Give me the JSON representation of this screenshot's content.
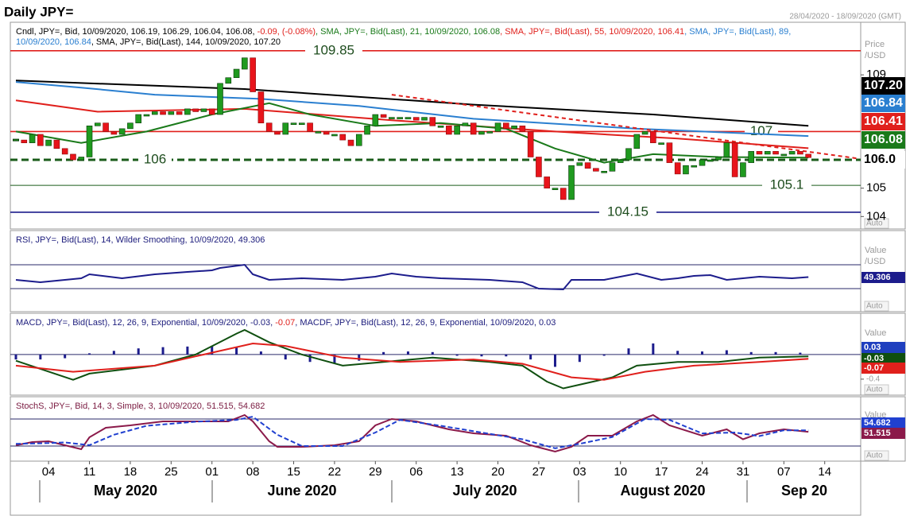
{
  "title": "Daily JPY=",
  "date_range": "28/04/2020 - 18/09/2020 (GMT)",
  "x_axis": {
    "day_labels": [
      "04",
      "11",
      "18",
      "25",
      "01",
      "08",
      "15",
      "22",
      "29",
      "06",
      "13",
      "20",
      "27",
      "03",
      "10",
      "17",
      "24",
      "31",
      "07",
      "14"
    ],
    "month_labels": [
      "May 2020",
      "June 2020",
      "July 2020",
      "August 2020",
      "Sep 20"
    ]
  },
  "chart_data": [
    {
      "type": "candlestick",
      "header": [
        [
          {
            "text": "Cndl, JPY=, Bid, 10/09/2020, 106.19, 106.29, 106.04, 106.08, ",
            "color": "#000000"
          },
          {
            "text": "-0.09, (-0.08%)",
            "color": "#e0201c"
          },
          {
            "text": ", SMA, JPY=, Bid(Last), 21, 10/09/2020, 106.08",
            "color": "#1a7a1a"
          },
          {
            "text": ", SMA, JPY=, Bid(Last), 55, 10/09/2020, 106.41",
            "color": "#e0201c"
          },
          {
            "text": ", SMA, JPY=, Bid(Last), 89,",
            "color": "#2a7fd0"
          }
        ],
        [
          {
            "text": "10/09/2020, 106.84",
            "color": "#2a7fd0"
          },
          {
            "text": ", SMA, JPY=, Bid(Last), 144, 10/09/2020, 107.20",
            "color": "#000000"
          }
        ]
      ],
      "up_color": "#1f9a1f",
      "down_color": "#e8141b",
      "closes": [
        106.7,
        106.6,
        106.9,
        106.5,
        106.7,
        106.4,
        106.2,
        106.0,
        106.1,
        107.2,
        107.3,
        107.0,
        106.9,
        107.1,
        107.3,
        107.6,
        107.6,
        107.7,
        107.6,
        107.7,
        107.6,
        107.8,
        107.7,
        107.8,
        107.6,
        108.7,
        108.9,
        109.2,
        109.6,
        108.4,
        107.3,
        107.0,
        106.9,
        107.3,
        107.3,
        107.3,
        107.0,
        107.0,
        106.9,
        106.9,
        106.7,
        106.5,
        106.9,
        107.2,
        107.6,
        107.5,
        107.5,
        107.5,
        107.5,
        107.4,
        107.5,
        107.2,
        107.2,
        106.9,
        107.2,
        107.3,
        106.9,
        107.0,
        107.0,
        107.3,
        107.1,
        107.2,
        107.0,
        106.1,
        105.4,
        105.0,
        105.0,
        104.6,
        105.8,
        105.9,
        105.7,
        105.6,
        105.6,
        105.9,
        106.0,
        106.4,
        106.9,
        107.0,
        106.6,
        106.6,
        105.9,
        105.5,
        105.8,
        105.8,
        106.0,
        106.0,
        106.1,
        106.6,
        105.4,
        105.9,
        106.3,
        106.2,
        106.3,
        106.2,
        106.2,
        106.3,
        106.2,
        106.08
      ],
      "series": [
        {
          "color": "#000000",
          "x": [
            0,
            28,
            56,
            78,
            97
          ],
          "values": [
            108.8,
            108.5,
            107.95,
            107.6,
            107.2
          ]
        },
        {
          "color": "#2a7fd0",
          "x": [
            0,
            8,
            17,
            30,
            42,
            56,
            76,
            97
          ],
          "values": [
            108.75,
            108.55,
            108.3,
            108.15,
            107.9,
            107.45,
            107.1,
            106.84
          ]
        },
        {
          "color": "#e0201c",
          "x": [
            0,
            10,
            28,
            46,
            66,
            81,
            97
          ],
          "values": [
            108.1,
            107.7,
            107.8,
            107.4,
            107.0,
            106.75,
            106.41
          ]
        },
        {
          "color": "#1a7a1a",
          "x": [
            0,
            8,
            16,
            24,
            31,
            36,
            44,
            52,
            60,
            66,
            72,
            78,
            86,
            97
          ],
          "values": [
            107.0,
            106.6,
            107.0,
            107.6,
            108.0,
            107.6,
            107.2,
            107.3,
            107.1,
            106.4,
            105.9,
            106.2,
            106.1,
            106.08
          ]
        }
      ],
      "trendline": {
        "color": "#e0201c",
        "x": [
          46,
          103
        ],
        "values": [
          108.3,
          106.05
        ]
      },
      "levels": [
        {
          "value": 109.85,
          "label": "109.85",
          "color": "#e0201c",
          "style": "solid"
        },
        {
          "value": 107,
          "label": "107",
          "color": "#e0201c",
          "style": "solid"
        },
        {
          "value": 106,
          "label": "106",
          "color": "#1a5c1a",
          "style": "dashed"
        },
        {
          "value": 105.1,
          "label": "105.1",
          "color": "#1a5c1a",
          "style": "thin"
        },
        {
          "value": 104.15,
          "label": "104.15",
          "color": "#1c1c8c",
          "style": "solid"
        }
      ],
      "ylim": [
        103.56,
        110.8
      ],
      "yticks": [
        104,
        105,
        109
      ],
      "axis_labels": [
        "Price",
        "/USD"
      ],
      "scale_mode": "Auto",
      "value_boxes": [
        {
          "label": "107.20",
          "color": "#000000",
          "text_color": "#ffffff"
        },
        {
          "label": "106.84",
          "color": "#2a7fd0",
          "text_color": "#ffffff"
        },
        {
          "label": "106.41",
          "color": "#e0201c",
          "text_color": "#ffffff"
        },
        {
          "label": "106.08",
          "color": "#1a7a1a",
          "text_color": "#ffffff"
        },
        {
          "label": "106.0",
          "color": "#ffffff",
          "text_color": "#000000"
        }
      ]
    },
    {
      "type": "line",
      "header": [
        [
          {
            "text": "RSI, JPY=, Bid(Last), 14, Wilder Smoothing, 10/09/2020, 49.306",
            "color": "#1c1c7c"
          }
        ]
      ],
      "series": [
        {
          "color": "#1c1c8c",
          "x": [
            0,
            3,
            6,
            8,
            9,
            13,
            17,
            21,
            24,
            25,
            28,
            29,
            31,
            35,
            40,
            44,
            46,
            49,
            52,
            58,
            62,
            64,
            67,
            68,
            72,
            75,
            76,
            79,
            81,
            83,
            85,
            87,
            89,
            91,
            95,
            97
          ],
          "values": [
            44.7,
            40.7,
            44.7,
            47.3,
            54,
            47.3,
            54,
            58,
            60.7,
            64.7,
            70,
            54,
            44.7,
            47.3,
            44.7,
            50,
            55.3,
            50,
            47.3,
            44.7,
            40.7,
            30,
            28.7,
            44.7,
            44.7,
            52.7,
            55.3,
            44.7,
            47.3,
            51.3,
            52.7,
            44.7,
            47.3,
            50,
            47.3,
            49.306
          ]
        }
      ],
      "reference_lines": [
        70,
        30
      ],
      "ylim": [
        -8.7,
        124.7
      ],
      "yticks": [],
      "axis_labels": [
        "Value",
        "/USD"
      ],
      "scale_mode": "Auto",
      "value_boxes": [
        {
          "label": "49.306",
          "color": "#1c1c8c",
          "text_color": "#ffffff"
        }
      ]
    },
    {
      "type": "macd",
      "header": [
        [
          {
            "text": "MACD, JPY=, Bid(Last), 12, 26, 9, Exponential, 10/09/2020, -0.03, ",
            "color": "#1c1c7c"
          },
          {
            "text": "-0.07",
            "color": "#e0201c"
          },
          {
            "text": ", MACDF, JPY=, Bid(Last), 12, 26, 9, Exponential, 10/09/2020, 0.03",
            "color": "#1c1c7c"
          }
        ]
      ],
      "histogram": {
        "color": "#1c1c8c",
        "x": [
          0,
          3,
          6,
          9,
          12,
          15,
          18,
          21,
          24,
          27,
          30,
          33,
          36,
          39,
          42,
          45,
          48,
          51,
          54,
          57,
          60,
          63,
          66,
          69,
          72,
          75,
          78,
          81,
          84,
          87,
          90,
          93,
          96
        ],
        "values": [
          -0.08,
          -0.08,
          -0.06,
          0.02,
          0.06,
          0.1,
          0.12,
          0.13,
          0.14,
          0.12,
          0.05,
          -0.08,
          -0.12,
          -0.14,
          -0.1,
          0.04,
          0.05,
          0.04,
          -0.02,
          -0.03,
          -0.03,
          -0.08,
          -0.2,
          -0.12,
          -0.02,
          0.1,
          0.18,
          0.06,
          0.05,
          0.07,
          0.04,
          0.04,
          0.03
        ]
      },
      "series": [
        {
          "color": "#0f4f0f",
          "x": [
            0,
            7,
            9,
            17,
            22,
            27,
            28,
            31,
            35,
            40,
            45,
            51,
            58,
            62,
            65,
            67,
            70,
            73,
            76,
            81,
            86,
            91,
            97
          ],
          "values": [
            -0.1,
            -0.41,
            -0.31,
            -0.18,
            0,
            0.34,
            0.4,
            0.2,
            0,
            -0.18,
            -0.12,
            -0.05,
            -0.12,
            -0.18,
            -0.44,
            -0.55,
            -0.46,
            -0.37,
            -0.18,
            -0.12,
            -0.12,
            -0.05,
            -0.03
          ]
        },
        {
          "color": "#e0201c",
          "x": [
            0,
            7,
            17,
            22,
            29,
            33,
            40,
            47,
            56,
            62,
            68,
            72,
            77,
            83,
            91,
            97
          ],
          "values": [
            -0.18,
            -0.28,
            -0.18,
            -0.03,
            0.18,
            0.14,
            -0.05,
            -0.12,
            -0.08,
            -0.15,
            -0.37,
            -0.41,
            -0.28,
            -0.18,
            -0.12,
            -0.07
          ]
        }
      ],
      "reference_lines": [
        0
      ],
      "ylim": [
        -0.66,
        0.645
      ],
      "yticks": [
        -0.4
      ],
      "axis_labels": [
        "Value"
      ],
      "scale_mode": "Auto",
      "value_boxes": [
        {
          "label": "0.03",
          "color": "#1f3fbf",
          "text_color": "#ffffff"
        },
        {
          "label": "-0.03",
          "color": "#0f4f0f",
          "text_color": "#ffffff"
        },
        {
          "label": "-0.07",
          "color": "#e0201c",
          "text_color": "#ffffff"
        }
      ]
    },
    {
      "type": "line",
      "header": [
        [
          {
            "text": "StochS, JPY=, Bid, 14, 3, Simple, 3, 10/09/2020, 51.515, 54.682",
            "color": "#7a1a40"
          }
        ]
      ],
      "series": [
        {
          "color": "#8b1a4a",
          "x": [
            0,
            2,
            4,
            6,
            8,
            9,
            11,
            14,
            18,
            22,
            26,
            28,
            29,
            31,
            32,
            35,
            39,
            42,
            44,
            46,
            49,
            53,
            56,
            60,
            63,
            66,
            68,
            70,
            73,
            76,
            78,
            80,
            84,
            87,
            89,
            91,
            94,
            97
          ],
          "values": [
            21.8,
            28.8,
            30.6,
            21.8,
            12.9,
            39.4,
            60.6,
            65.9,
            74.7,
            74.7,
            74.7,
            88.8,
            74.7,
            30.6,
            18.2,
            18.2,
            21.8,
            30.6,
            65.9,
            80,
            74.7,
            57,
            48.2,
            42.9,
            21.8,
            7.7,
            18.2,
            42.9,
            42.9,
            74.7,
            88.8,
            65.9,
            42.9,
            57,
            35,
            48.2,
            57,
            51.515
          ]
        },
        {
          "color": "#2040d0",
          "dashed": true,
          "x": [
            0,
            3,
            6,
            9,
            12,
            16,
            22,
            27,
            29,
            32,
            35,
            40,
            44,
            47,
            52,
            57,
            62,
            66,
            69,
            73,
            77,
            80,
            84,
            88,
            91,
            94,
            97
          ],
          "values": [
            25,
            26,
            28,
            22,
            45,
            65,
            74,
            78,
            85,
            45,
            20,
            20,
            50,
            78,
            65,
            50,
            35,
            15,
            25,
            40,
            80,
            78,
            48,
            50,
            42,
            55,
            54.682
          ]
        }
      ],
      "reference_lines": [
        80,
        20
      ],
      "ylim": [
        -13.5,
        125.8
      ],
      "yticks": [],
      "axis_labels": [
        "Value"
      ],
      "scale_mode": "Auto",
      "value_boxes": [
        {
          "label": "54.682",
          "color": "#2040d0",
          "text_color": "#ffffff"
        },
        {
          "label": "51.515",
          "color": "#8b1a4a",
          "text_color": "#ffffff"
        }
      ]
    }
  ]
}
